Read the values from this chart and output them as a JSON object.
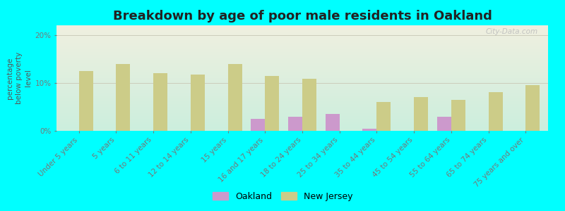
{
  "title": "Breakdown by age of poor male residents in Oakland",
  "ylabel": "percentage\nbelow poverty\nlevel",
  "background_color": "#00FFFF",
  "plot_bg_top": "#f0f0e0",
  "plot_bg_bottom": "#cceedd",
  "categories": [
    "Under 5 years",
    "5 years",
    "6 to 11 years",
    "12 to 14 years",
    "15 years",
    "16 and 17 years",
    "18 to 24 years",
    "25 to 34 years",
    "35 to 44 years",
    "45 to 54 years",
    "55 to 64 years",
    "65 to 74 years",
    "75 years and over"
  ],
  "oakland_values": [
    0.0,
    0.0,
    0.0,
    0.0,
    0.0,
    2.5,
    3.0,
    3.5,
    0.5,
    0.0,
    3.0,
    0.0,
    0.0
  ],
  "newjersey_values": [
    12.5,
    14.0,
    12.0,
    11.8,
    14.0,
    11.5,
    10.8,
    0.0,
    6.0,
    7.0,
    6.5,
    8.0,
    9.5
  ],
  "oakland_color": "#cc99cc",
  "newjersey_color": "#cccc88",
  "bar_width": 0.38,
  "ylim": [
    0,
    22
  ],
  "yticks": [
    0,
    10,
    20
  ],
  "ytick_labels": [
    "0%",
    "10%",
    "20%"
  ],
  "grid_color": "#ccccbb",
  "title_fontsize": 13,
  "ylabel_fontsize": 7.5,
  "tick_fontsize": 7.5,
  "legend_labels": [
    "Oakland",
    "New Jersey"
  ],
  "watermark": "City-Data.com"
}
